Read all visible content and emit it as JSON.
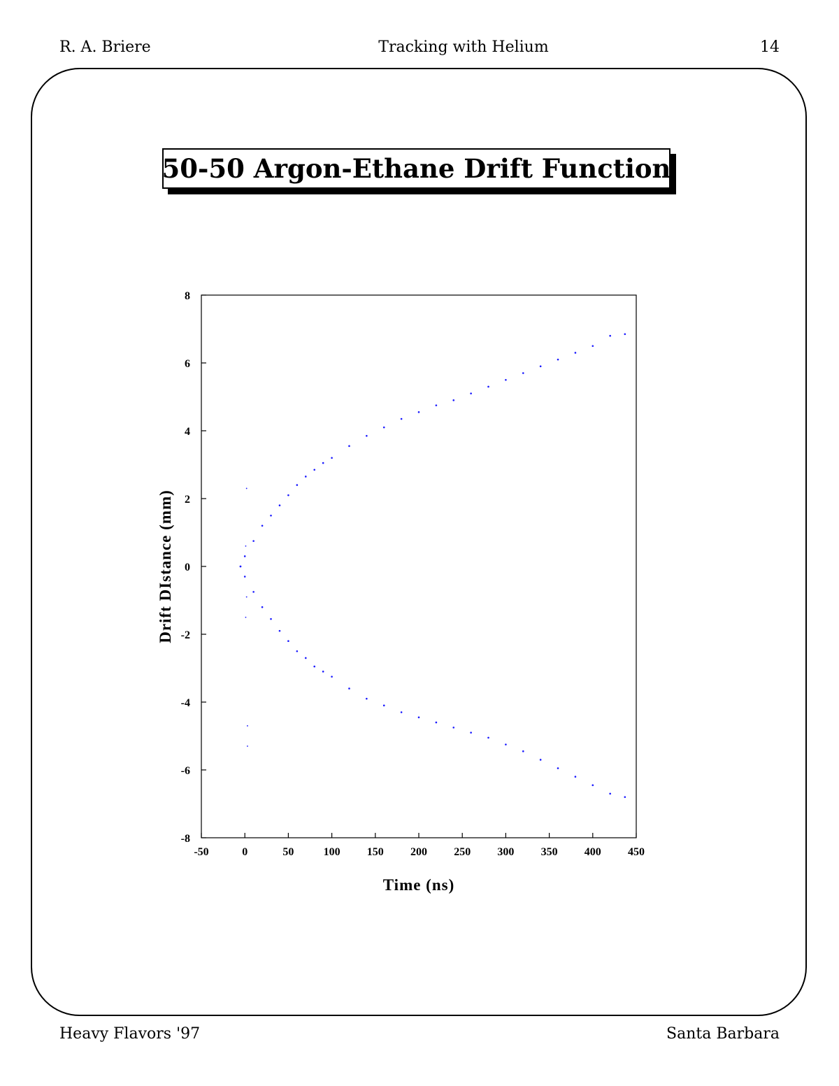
{
  "header": {
    "author": "R. A. Briere",
    "topic": "Tracking with Helium",
    "page_number": "14"
  },
  "footer": {
    "conference": "Heavy Flavors '97",
    "location": "Santa Barbara"
  },
  "slide_title": "50-50 Argon-Ethane Drift Function",
  "chart_data": {
    "type": "scatter",
    "title": "",
    "xlabel": "Time (ns)",
    "ylabel": "Drift DIstance (mm)",
    "xlim": [
      -50,
      450
    ],
    "ylim": [
      -8,
      8
    ],
    "x_ticks": [
      -50,
      0,
      50,
      100,
      150,
      200,
      250,
      300,
      350,
      400,
      450
    ],
    "y_ticks": [
      -8,
      -6,
      -4,
      -2,
      0,
      2,
      4,
      6,
      8
    ],
    "grid": false,
    "point_color": "#1a1aff",
    "series": [
      {
        "name": "",
        "x": [
          -5,
          0,
          10,
          20,
          30,
          40,
          50,
          60,
          70,
          80,
          90,
          100,
          120,
          140,
          160,
          180,
          200,
          220,
          240,
          260,
          280,
          300,
          320,
          340,
          360,
          380,
          400,
          420,
          437
        ],
        "y": [
          0.0,
          0.3,
          0.75,
          1.2,
          1.5,
          1.8,
          2.1,
          2.4,
          2.65,
          2.85,
          3.05,
          3.2,
          3.55,
          3.85,
          4.1,
          4.35,
          4.55,
          4.75,
          4.9,
          5.1,
          5.3,
          5.5,
          5.7,
          5.9,
          6.1,
          6.3,
          6.5,
          6.8,
          6.85
        ]
      },
      {
        "name": "",
        "x": [
          -5,
          0,
          10,
          20,
          30,
          40,
          50,
          60,
          70,
          80,
          90,
          100,
          120,
          140,
          160,
          180,
          200,
          220,
          240,
          260,
          280,
          300,
          320,
          340,
          360,
          380,
          400,
          420,
          437
        ],
        "y": [
          0.0,
          -0.3,
          -0.75,
          -1.2,
          -1.55,
          -1.9,
          -2.2,
          -2.5,
          -2.7,
          -2.95,
          -3.1,
          -3.25,
          -3.6,
          -3.9,
          -4.1,
          -4.3,
          -4.45,
          -4.6,
          -4.75,
          -4.9,
          -5.05,
          -5.25,
          -5.45,
          -5.7,
          -5.95,
          -6.2,
          -6.45,
          -6.7,
          -6.8
        ]
      },
      {
        "name": "",
        "x": [
          2,
          1,
          1,
          3,
          3,
          2
        ],
        "y": [
          2.3,
          0.6,
          -1.5,
          -4.7,
          -5.3,
          -0.9
        ]
      }
    ]
  }
}
